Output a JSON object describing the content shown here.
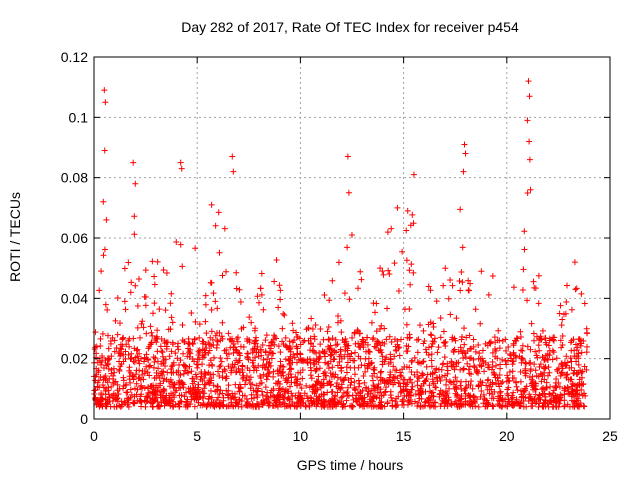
{
  "chart_data": {
    "type": "scatter",
    "title": "Day 282 of 2017, Rate Of TEC Index for receiver p454",
    "xlabel": "GPS time / hours",
    "ylabel": "ROTI / TECUs",
    "xlim": [
      0,
      25
    ],
    "ylim": [
      0,
      0.12
    ],
    "xticks": [
      0,
      5,
      10,
      15,
      20,
      25
    ],
    "xtick_labels": [
      "0",
      "5",
      "10",
      "15",
      "20",
      "25"
    ],
    "yticks": [
      0,
      0.02,
      0.04,
      0.06,
      0.08,
      0.1,
      0.12
    ],
    "ytick_labels": [
      "0",
      "0.02",
      "0.04",
      "0.06",
      "0.08",
      "0.1",
      "0.12"
    ],
    "grid": true,
    "marker": "+",
    "series": [
      {
        "name": "ROTI",
        "color": "#ff0000",
        "baseline_range": [
          0.004,
          0.035
        ],
        "envelope": [
          {
            "x": 0.0,
            "ymax": 0.035
          },
          {
            "x": 0.5,
            "ymax": 0.06
          },
          {
            "x": 1.0,
            "ymax": 0.045
          },
          {
            "x": 1.5,
            "ymax": 0.05
          },
          {
            "x": 2.0,
            "ymax": 0.08
          },
          {
            "x": 2.5,
            "ymax": 0.06
          },
          {
            "x": 3.0,
            "ymax": 0.06
          },
          {
            "x": 3.5,
            "ymax": 0.05
          },
          {
            "x": 4.0,
            "ymax": 0.065
          },
          {
            "x": 4.5,
            "ymax": 0.07
          },
          {
            "x": 5.0,
            "ymax": 0.055
          },
          {
            "x": 5.5,
            "ymax": 0.065
          },
          {
            "x": 6.0,
            "ymax": 0.07
          },
          {
            "x": 6.5,
            "ymax": 0.065
          },
          {
            "x": 7.0,
            "ymax": 0.045
          },
          {
            "x": 7.5,
            "ymax": 0.035
          },
          {
            "x": 8.0,
            "ymax": 0.05
          },
          {
            "x": 8.5,
            "ymax": 0.06
          },
          {
            "x": 9.0,
            "ymax": 0.055
          },
          {
            "x": 9.5,
            "ymax": 0.035
          },
          {
            "x": 10.0,
            "ymax": 0.03
          },
          {
            "x": 10.5,
            "ymax": 0.035
          },
          {
            "x": 11.0,
            "ymax": 0.045
          },
          {
            "x": 11.5,
            "ymax": 0.045
          },
          {
            "x": 12.0,
            "ymax": 0.055
          },
          {
            "x": 12.5,
            "ymax": 0.075
          },
          {
            "x": 13.0,
            "ymax": 0.05
          },
          {
            "x": 13.5,
            "ymax": 0.045
          },
          {
            "x": 14.0,
            "ymax": 0.06
          },
          {
            "x": 14.5,
            "ymax": 0.065
          },
          {
            "x": 15.0,
            "ymax": 0.065
          },
          {
            "x": 15.5,
            "ymax": 0.07
          },
          {
            "x": 16.0,
            "ymax": 0.05
          },
          {
            "x": 16.5,
            "ymax": 0.045
          },
          {
            "x": 17.0,
            "ymax": 0.05
          },
          {
            "x": 17.5,
            "ymax": 0.06
          },
          {
            "x": 18.0,
            "ymax": 0.08
          },
          {
            "x": 18.5,
            "ymax": 0.05
          },
          {
            "x": 19.0,
            "ymax": 0.055
          },
          {
            "x": 19.5,
            "ymax": 0.045
          },
          {
            "x": 20.0,
            "ymax": 0.035
          },
          {
            "x": 20.5,
            "ymax": 0.05
          },
          {
            "x": 21.0,
            "ymax": 0.09
          },
          {
            "x": 21.5,
            "ymax": 0.05
          },
          {
            "x": 22.0,
            "ymax": 0.045
          },
          {
            "x": 22.5,
            "ymax": 0.035
          },
          {
            "x": 23.0,
            "ymax": 0.05
          },
          {
            "x": 23.5,
            "ymax": 0.045
          },
          {
            "x": 23.9,
            "ymax": 0.04
          }
        ],
        "spikes": [
          {
            "x": 0.5,
            "y": 0.109
          },
          {
            "x": 0.55,
            "y": 0.105
          },
          {
            "x": 0.52,
            "y": 0.089
          },
          {
            "x": 0.45,
            "y": 0.072
          },
          {
            "x": 0.6,
            "y": 0.066
          },
          {
            "x": 1.9,
            "y": 0.085
          },
          {
            "x": 2.0,
            "y": 0.078
          },
          {
            "x": 4.2,
            "y": 0.085
          },
          {
            "x": 4.25,
            "y": 0.083
          },
          {
            "x": 6.7,
            "y": 0.087
          },
          {
            "x": 6.75,
            "y": 0.082
          },
          {
            "x": 5.7,
            "y": 0.071
          },
          {
            "x": 12.3,
            "y": 0.087
          },
          {
            "x": 12.35,
            "y": 0.075
          },
          {
            "x": 14.7,
            "y": 0.07
          },
          {
            "x": 15.5,
            "y": 0.081
          },
          {
            "x": 15.2,
            "y": 0.069
          },
          {
            "x": 17.95,
            "y": 0.091
          },
          {
            "x": 18.0,
            "y": 0.088
          },
          {
            "x": 17.9,
            "y": 0.082
          },
          {
            "x": 21.05,
            "y": 0.112
          },
          {
            "x": 21.1,
            "y": 0.107
          },
          {
            "x": 21.0,
            "y": 0.099
          },
          {
            "x": 21.08,
            "y": 0.092
          },
          {
            "x": 21.12,
            "y": 0.086
          },
          {
            "x": 21.15,
            "y": 0.076
          },
          {
            "x": 23.3,
            "y": 0.052
          }
        ]
      }
    ]
  }
}
